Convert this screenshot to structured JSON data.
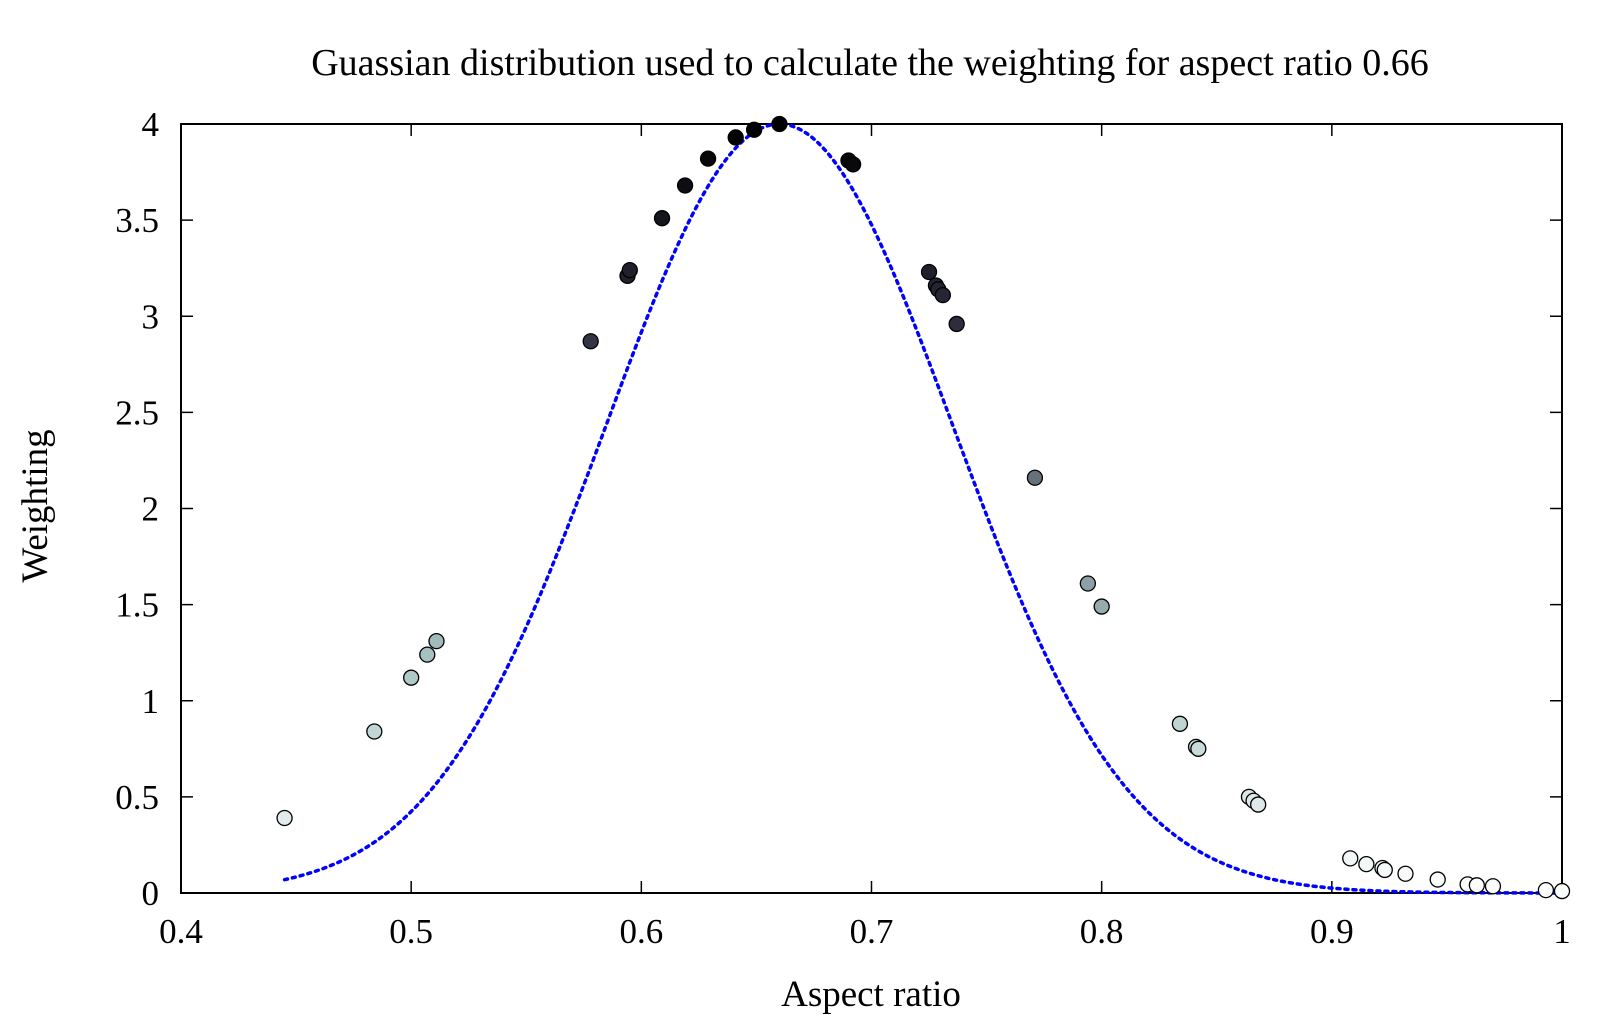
{
  "chart_data": {
    "type": "scatter",
    "title": "Guassian distribution used to calculate the weighting for aspect ratio 0.66",
    "xlabel": "Aspect ratio",
    "ylabel": "Weighting",
    "xlim": [
      0.4,
      1.0
    ],
    "ylim": [
      0,
      4
    ],
    "x_ticks": [
      "0.4",
      "0.5",
      "0.6",
      "0.7",
      "0.8",
      "0.9",
      "1"
    ],
    "y_ticks": [
      "0",
      "0.5",
      "1",
      "1.5",
      "2",
      "2.5",
      "3",
      "3.5",
      "4"
    ],
    "grid": false,
    "legend": "none",
    "curve": {
      "style": "dotted",
      "color": "#0000ff",
      "mean": 0.66,
      "peak": 4.0,
      "x_range": [
        0.445,
        1.0
      ]
    },
    "point_colors": {
      "low": "#ffffff",
      "mid": "#a9c4c4",
      "high": "#2a2a3a",
      "top": "#000000",
      "edge": "#000000"
    },
    "series": [
      {
        "x": [
          0.445,
          0.484,
          0.5,
          0.507,
          0.511,
          0.578,
          0.594,
          0.595,
          0.609,
          0.619,
          0.629,
          0.641,
          0.649,
          0.66,
          0.69,
          0.692,
          0.725,
          0.728,
          0.729,
          0.731,
          0.737,
          0.771,
          0.794,
          0.8,
          0.834,
          0.841,
          0.842,
          0.864,
          0.866,
          0.868,
          0.908,
          0.915,
          0.922,
          0.923,
          0.932,
          0.946,
          0.959,
          0.963,
          0.97,
          0.993,
          1.0
        ],
        "y": [
          0.39,
          0.84,
          1.12,
          1.24,
          1.31,
          2.87,
          3.21,
          3.24,
          3.51,
          3.68,
          3.82,
          3.93,
          3.97,
          4.0,
          3.81,
          3.79,
          3.23,
          3.16,
          3.14,
          3.11,
          2.96,
          2.16,
          1.61,
          1.49,
          0.88,
          0.76,
          0.75,
          0.5,
          0.48,
          0.46,
          0.18,
          0.15,
          0.13,
          0.12,
          0.1,
          0.07,
          0.045,
          0.04,
          0.035,
          0.015,
          0.01
        ]
      }
    ]
  }
}
